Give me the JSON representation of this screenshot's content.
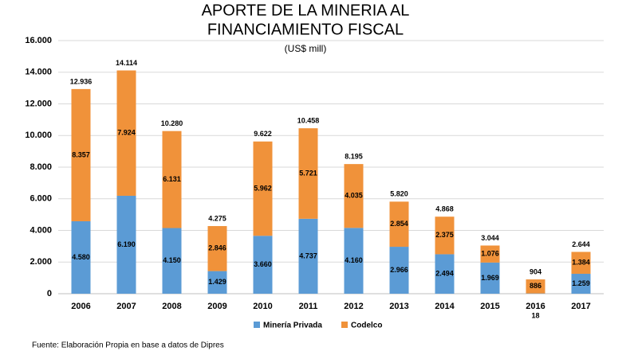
{
  "chart_data": {
    "type": "stacked_bar",
    "title": [
      "APORTE DE LA MINERIA AL",
      "FINANCIAMIENTO FISCAL"
    ],
    "subtitle": "(US$ mill)",
    "source": "Fuente: Elaboración Propia en base a datos de Dipres",
    "categories": [
      "2006",
      "2007",
      "2008",
      "2009",
      "2010",
      "2011",
      "2012",
      "2013",
      "2014",
      "2015",
      "2016",
      "2017"
    ],
    "series": [
      {
        "name": "Minería Privada",
        "color": "#5b9bd5",
        "values": [
          4580,
          6190,
          4150,
          1429,
          3660,
          4737,
          4160,
          2966,
          2494,
          1969,
          18,
          1259
        ],
        "value_labels": [
          "4.580",
          "6.190",
          "4.150",
          "1.429",
          "3.660",
          "4.737",
          "4.160",
          "2.966",
          "2.494",
          "1.969",
          "18",
          "1.259"
        ]
      },
      {
        "name": "Codelco",
        "color": "#f0923a",
        "values": [
          8357,
          7924,
          6131,
          2846,
          5962,
          5721,
          4035,
          2854,
          2375,
          1076,
          886,
          1384
        ],
        "value_labels": [
          "8.357",
          "7.924",
          "6.131",
          "2.846",
          "5.962",
          "5.721",
          "4.035",
          "2.854",
          "2.375",
          "1.076",
          "886",
          "1.384"
        ]
      }
    ],
    "totals": {
      "values": [
        12936,
        14114,
        10280,
        4275,
        9622,
        10458,
        8195,
        5820,
        4868,
        3044,
        904,
        2644
      ],
      "value_labels": [
        "12.936",
        "14.114",
        "10.280",
        "4.275",
        "9.622",
        "10.458",
        "8.195",
        "5.820",
        "4.868",
        "3.044",
        "904",
        "2.644"
      ]
    },
    "ylim": [
      0,
      16000
    ],
    "yticks": [
      0,
      {
        "value": 2000,
        "label": "2.000"
      },
      {
        "value": 4000,
        "label": "4.000"
      },
      {
        "value": 6000,
        "label": "6.000"
      },
      {
        "value": 8000,
        "label": "8.000"
      },
      {
        "value": 10000,
        "label": "10.000"
      },
      {
        "value": 12000,
        "label": "12.000"
      },
      {
        "value": 14000,
        "label": "14.000"
      },
      {
        "value": 16000,
        "label": "16.000"
      }
    ],
    "grid": true,
    "legend": "bottom"
  }
}
